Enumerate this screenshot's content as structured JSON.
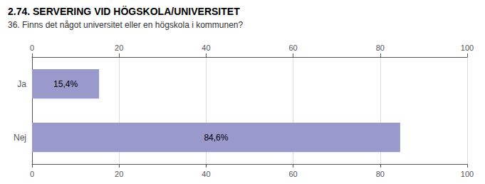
{
  "chart_data": {
    "type": "bar",
    "orientation": "horizontal",
    "title": "2.74. SERVERING VID HÖGSKOLA/UNIVERSITET",
    "subtitle": "36. Finns det något universitet eller en högskola i kommunen?",
    "categories": [
      "Ja",
      "Nej"
    ],
    "values": [
      15.4,
      84.6
    ],
    "value_labels": [
      "15,4%",
      "84,6%"
    ],
    "data_labels": true,
    "color": "#9999cc",
    "xlim": [
      0,
      100
    ],
    "xticks": [
      0,
      20,
      40,
      60,
      80,
      100
    ],
    "grid": true
  }
}
